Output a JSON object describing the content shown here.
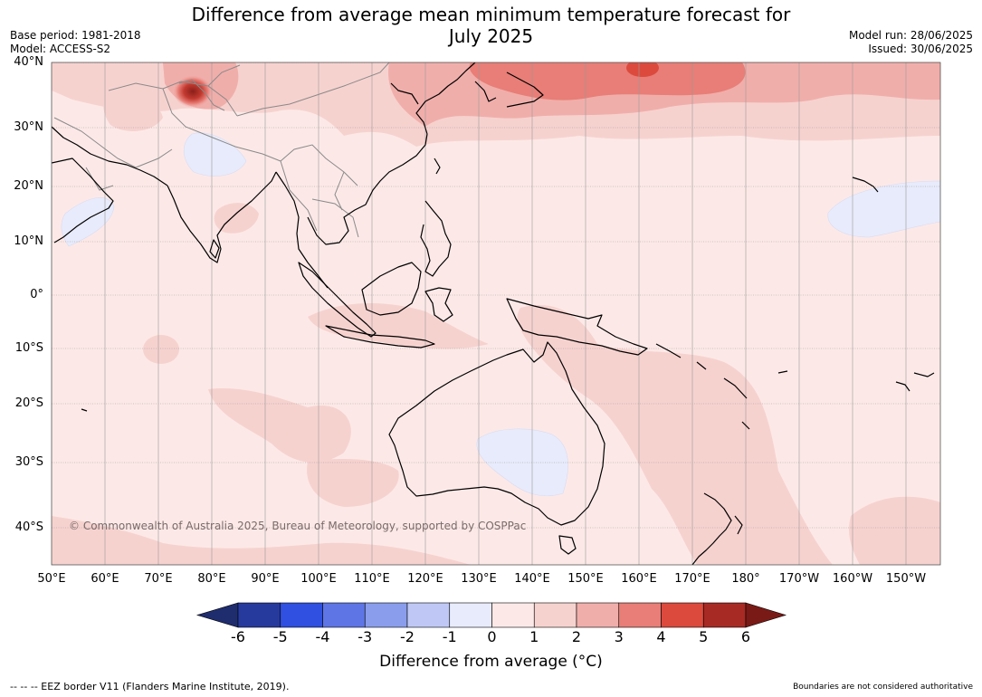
{
  "title": "Difference from average mean minimum temperature forecast for",
  "title_line2": "July 2025",
  "base_period": "Base period: 1981-2018",
  "model": "Model: ACCESS-S2",
  "model_run": "Model run: 28/06/2025",
  "issued": "Issued: 30/06/2025",
  "copyright": "© Commonwealth of Australia 2025, Bureau of Meteorology, supported by COSPPac",
  "lat_labels": [
    "40°N",
    "30°N",
    "20°N",
    "10°N",
    "0°",
    "10°S",
    "20°S",
    "30°S",
    "40°S"
  ],
  "lon_labels": [
    "50°E",
    "60°E",
    "70°E",
    "80°E",
    "90°E",
    "100°E",
    "110°E",
    "120°E",
    "130°E",
    "140°E",
    "150°E",
    "160°E",
    "170°E",
    "180°",
    "170°W",
    "160°W",
    "150°W"
  ],
  "colorbar": {
    "ticks": [
      "-6",
      "-5",
      "-4",
      "-3",
      "-2",
      "-1",
      "0",
      "1",
      "2",
      "3",
      "4",
      "5",
      "6"
    ],
    "colors": [
      "#263a9e",
      "#2f50e0",
      "#5e75e6",
      "#8a9ded",
      "#bfc8f5",
      "#e8ebfb",
      "#fce9e7",
      "#f6d2cf",
      "#f0aeaa",
      "#e87e77",
      "#dc4a3d",
      "#a82a24"
    ],
    "under_color": "#1f2d6e",
    "over_color": "#7a1a16",
    "label": "Difference from average (°C)"
  },
  "footer_left": "--  --  -- EEZ border V11 (Flanders Marine Institute, 2019).",
  "footer_right": "Boundaries are not considered authoritative"
}
